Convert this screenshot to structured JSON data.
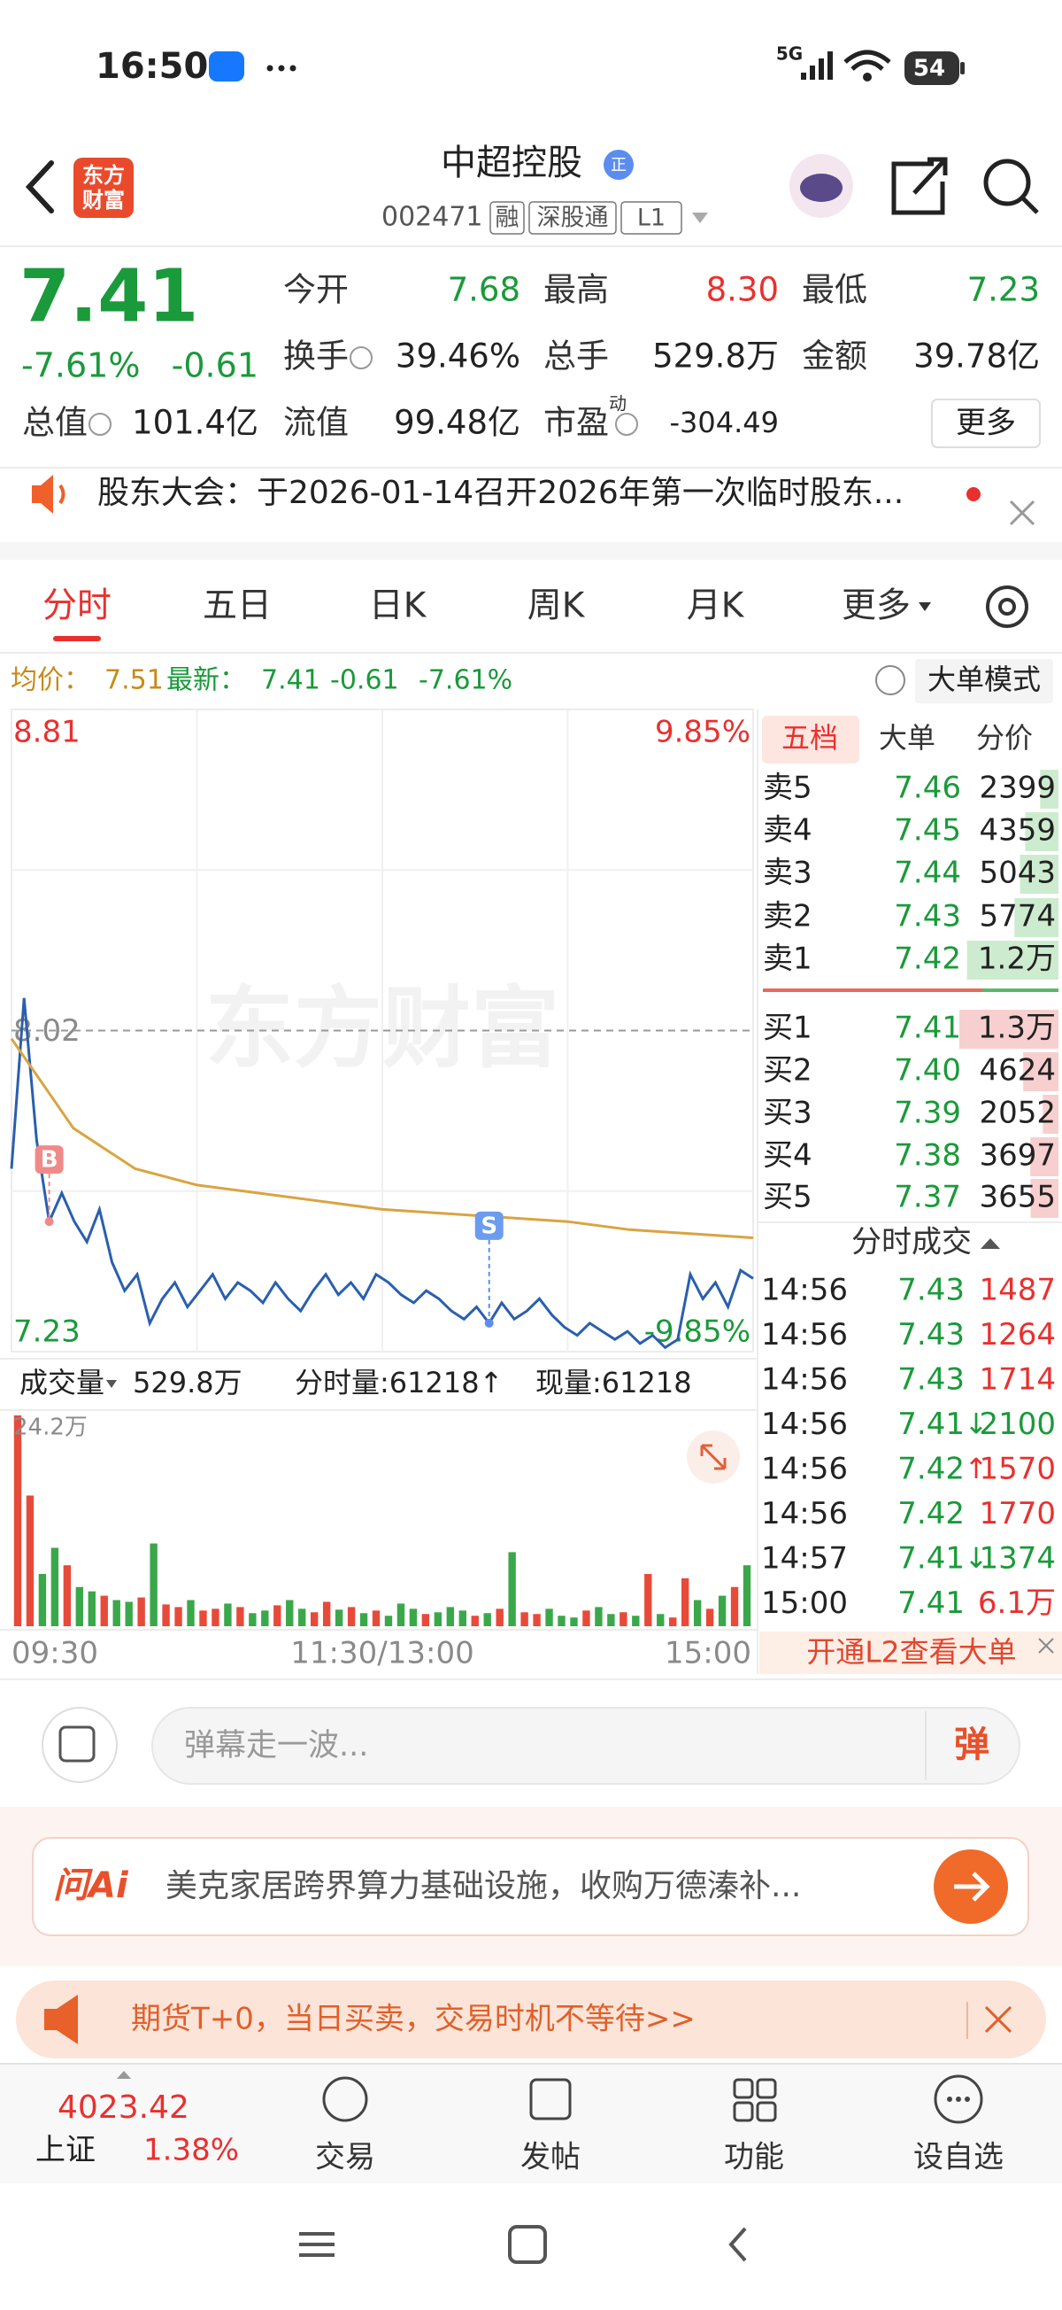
{
  "status_bar": {
    "time": "16:50",
    "network": "5G",
    "battery": "54"
  },
  "header": {
    "logo": [
      "东方",
      "财富"
    ],
    "title": "中超控股",
    "badge": "正",
    "code": "002471",
    "tags": [
      "融",
      "深股通",
      "L1"
    ]
  },
  "quote": {
    "price": "7.41",
    "change_pct": "-7.61%",
    "change": "-0.61",
    "stats": [
      {
        "label": "今开",
        "value": "7.68",
        "color": "#1a9a3a"
      },
      {
        "label": "最高",
        "value": "8.30",
        "color": "#e8312f"
      },
      {
        "label": "最低",
        "value": "7.23",
        "color": "#1a9a3a"
      },
      {
        "label": "换手",
        "value": "39.46%",
        "info_icon": true
      },
      {
        "label": "总手",
        "value": "529.8万"
      },
      {
        "label": "金额",
        "value": "39.78亿"
      },
      {
        "label": "总值",
        "value": "101.4亿",
        "info_icon": true
      },
      {
        "label": "流值",
        "value": "99.48亿"
      },
      {
        "label": "市盈",
        "sup": "动",
        "value": "-304.49",
        "info_icon": true
      }
    ],
    "more": "更多"
  },
  "notice": {
    "text": "股东大会：于2026-01-14召开2026年第一次临时股东..."
  },
  "tabs": {
    "items": [
      "分时",
      "五日",
      "日K",
      "周K",
      "月K",
      "更多"
    ],
    "active": 0
  },
  "intraday": {
    "avg_label": "均价：",
    "avg": "7.51",
    "latest_label": "最新：",
    "latest": "7.41",
    "change": "-0.61",
    "change_pct": "-7.61%",
    "big_order_mode": "大单模式",
    "watermark": "东方财富",
    "ylim": [
      7.23,
      8.81
    ],
    "yticks": [
      7.23,
      8.02,
      8.81
    ],
    "pct_lim": [
      -9.85,
      9.85
    ],
    "pct_ticks": [
      {
        "value": -9.85,
        "label": "-9.85%"
      },
      {
        "value": 9.85,
        "label": "9.85%"
      }
    ],
    "price": [
      7.68,
      8.1,
      7.75,
      7.55,
      7.62,
      7.55,
      7.5,
      7.58,
      7.45,
      7.38,
      7.42,
      7.3,
      7.36,
      7.4,
      7.34,
      7.38,
      7.42,
      7.36,
      7.4,
      7.38,
      7.35,
      7.4,
      7.36,
      7.33,
      7.38,
      7.42,
      7.37,
      7.4,
      7.36,
      7.42,
      7.4,
      7.37,
      7.35,
      7.38,
      7.36,
      7.33,
      7.31,
      7.34,
      7.3,
      7.35,
      7.31,
      7.33,
      7.36,
      7.32,
      7.29,
      7.27,
      7.3,
      7.28,
      7.26,
      7.28,
      7.25,
      7.27,
      7.24,
      7.26,
      7.42,
      7.36,
      7.4,
      7.34,
      7.43,
      7.41
    ],
    "avg_line": [
      8.0,
      7.78,
      7.68,
      7.64,
      7.62,
      7.6,
      7.58,
      7.57,
      7.56,
      7.55,
      7.53,
      7.52,
      7.51
    ],
    "markers": [
      {
        "label": "B",
        "at": 3
      },
      {
        "label": "S",
        "at": 38
      }
    ],
    "volume_label": "成交量",
    "volume_total": "529.8万",
    "tick_volume": "分时量:61218↑",
    "current_volume": "现量:61218",
    "vol_ylim": [
      0,
      242000
    ],
    "vol_ticks": [
      {
        "value": 242000,
        "label": "24.2万"
      }
    ],
    "volumes": [
      242000,
      150000,
      60000,
      90000,
      70000,
      45000,
      40000,
      35000,
      30000,
      28000,
      33000,
      95000,
      25000,
      22000,
      30000,
      18000,
      20000,
      26000,
      22000,
      15000,
      18000,
      24000,
      30000,
      20000,
      16000,
      28000,
      19000,
      22000,
      15000,
      18000,
      12000,
      26000,
      20000,
      14000,
      16000,
      22000,
      18000,
      12000,
      15000,
      20000,
      85000,
      16000,
      14000,
      20000,
      12000,
      10000,
      18000,
      22000,
      14000,
      16000,
      12000,
      60000,
      14000,
      10000,
      55000,
      30000,
      20000,
      35000,
      45000,
      70000
    ],
    "time_labels": [
      "09:30",
      "11:30/13:00",
      "15:00"
    ]
  },
  "order_book": {
    "tabs": [
      "五档",
      "大单",
      "分价"
    ],
    "asks": [
      {
        "label": "卖5",
        "price": "7.46",
        "volume": 2399
      },
      {
        "label": "卖4",
        "price": "7.45",
        "volume": 4359
      },
      {
        "label": "卖3",
        "price": "7.44",
        "volume": 5043
      },
      {
        "label": "卖2",
        "price": "7.43",
        "volume": 5774
      },
      {
        "label": "卖1",
        "price": "7.42",
        "volume": {
          "value": 12000,
          "label": "1.2万"
        }
      }
    ],
    "bids": [
      {
        "label": "买1",
        "price": "7.41",
        "volume": {
          "value": 13000,
          "label": "1.3万"
        }
      },
      {
        "label": "买2",
        "price": "7.40",
        "volume": 4624
      },
      {
        "label": "买3",
        "price": "7.39",
        "volume": 2052
      },
      {
        "label": "买4",
        "price": "7.38",
        "volume": 3697
      },
      {
        "label": "买5",
        "price": "7.37",
        "volume": 3655
      }
    ],
    "trades_title": "分时成交",
    "trades": [
      {
        "time": "14:56",
        "price": "7.43",
        "volume": "1487"
      },
      {
        "time": "14:56",
        "price": "7.43",
        "volume": "1264"
      },
      {
        "time": "14:56",
        "price": "7.43",
        "volume": "1714"
      },
      {
        "time": "14:56",
        "price": "7.41",
        "flag": "↓",
        "volume": "2100"
      },
      {
        "time": "14:56",
        "price": "7.42",
        "flag": "↑",
        "volume": "1570"
      },
      {
        "time": "14:56",
        "price": "7.42",
        "volume": "1770"
      },
      {
        "time": "14:57",
        "price": "7.41",
        "flag": "↓",
        "volume": "1374"
      },
      {
        "time": "15:00",
        "price": "7.41",
        "volume": "6.1万"
      }
    ],
    "l2": "开通L2查看大单"
  },
  "danmaku": {
    "placeholder": "弹幕走一波...",
    "button": "弹"
  },
  "ai": {
    "brand": "问Ai",
    "text": "美克家居跨界算力基础设施，收购万德溱补..."
  },
  "promo": {
    "text": "期货T+0，当日买卖，交易时机不等待>>"
  },
  "bottom_nav": {
    "index_value": "4023.42",
    "index_name": "上证",
    "index_change": "1.38%",
    "items": [
      "交易",
      "发帖",
      "功能",
      "设自选"
    ]
  }
}
